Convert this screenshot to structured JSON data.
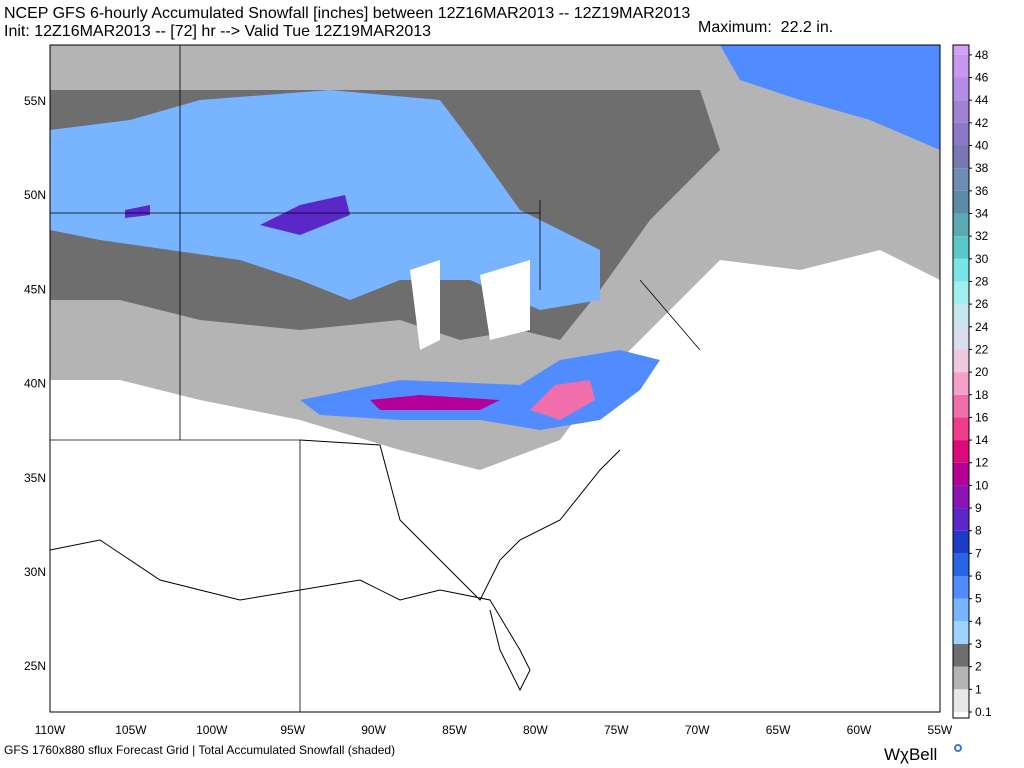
{
  "header": {
    "title": "NCEP GFS 6-hourly Accumulated Snowfall [inches] between 12Z16MAR2013 -- 12Z19MAR2013",
    "subtitle": "Init: 12Z16MAR2013 -- [72] hr --> Valid Tue 12Z19MAR2013",
    "maximum": "Maximum:  22.2 in."
  },
  "map": {
    "lat_labels": [
      "55N",
      "50N",
      "45N",
      "40N",
      "35N",
      "30N",
      "25N"
    ],
    "lon_labels": [
      "110W",
      "105W",
      "100W",
      "95W",
      "90W",
      "85W",
      "80W",
      "75W",
      "70W",
      "65W",
      "60W",
      "55W"
    ]
  },
  "colorbar": {
    "ticks": [
      0.1,
      1,
      2,
      3,
      4,
      5,
      6,
      7,
      8,
      9,
      10,
      12,
      14,
      16,
      18,
      20,
      22,
      24,
      26,
      28,
      30,
      32,
      34,
      36,
      38,
      40,
      42,
      44,
      46,
      48
    ],
    "colors": [
      "#e8e8e8",
      "#b4b4b4",
      "#6e6e6e",
      "#a0d2ff",
      "#78b4ff",
      "#508cff",
      "#2864e6",
      "#1e3cc8",
      "#5a28c8",
      "#8c14b4",
      "#b40096",
      "#dc0a78",
      "#f03c8c",
      "#f06eaa",
      "#f5a0c8",
      "#f0c8dc",
      "#dcdcf0",
      "#c8e6f0",
      "#a0f0f0",
      "#78e6e6",
      "#5ac8c8",
      "#5aaab4",
      "#5a8caa",
      "#6e8cb4",
      "#7878b4",
      "#8c78c8",
      "#a082d2",
      "#b48ce6",
      "#c896f0"
    ]
  },
  "footer": {
    "caption": "GFS 1760x880 sflux Forecast Grid | Total Accumulated Snowfall (shaded)",
    "logo": "WχBell"
  }
}
